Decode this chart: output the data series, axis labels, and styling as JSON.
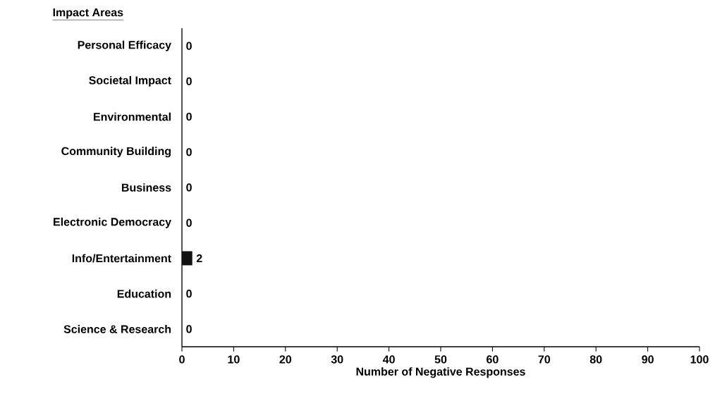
{
  "chart_data": {
    "type": "bar",
    "orientation": "horizontal",
    "ylabel": "Impact Areas",
    "xlabel": "Number of Negative Responses",
    "categories": [
      "Personal Efficacy",
      "Societal Impact",
      "Environmental",
      "Community Building",
      "Business",
      "Electronic Democracy",
      "Info/Entertainment",
      "Education",
      "Science & Research"
    ],
    "values": [
      0,
      0,
      0,
      0,
      0,
      0,
      2,
      0,
      0
    ],
    "value_labels": [
      "0",
      "0",
      "0",
      "0",
      "0",
      "0",
      "2",
      "0",
      "0"
    ],
    "color": "#111111",
    "xlim": [
      0,
      100
    ],
    "xticks": [
      0,
      10,
      20,
      30,
      40,
      50,
      60,
      70,
      80,
      90,
      100
    ]
  }
}
